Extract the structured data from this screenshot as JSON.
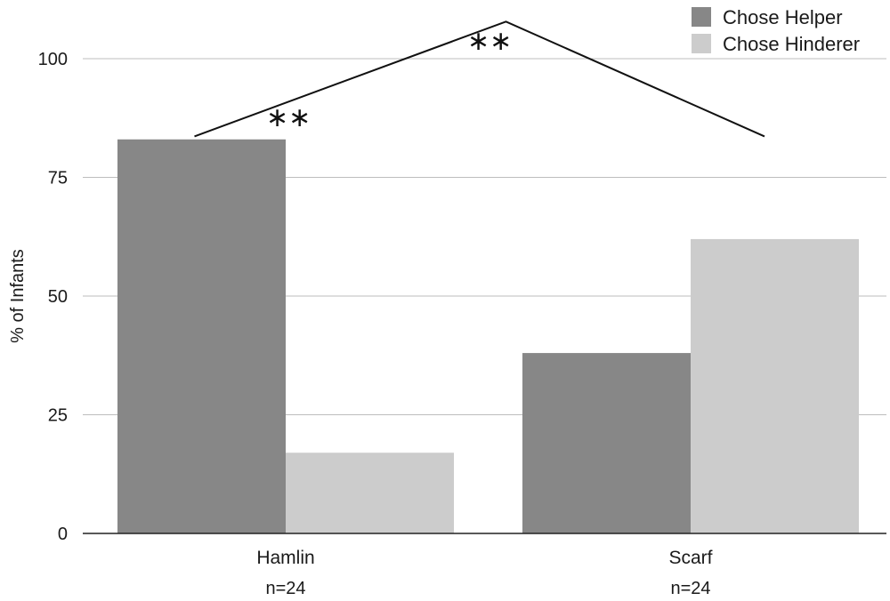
{
  "chart_data": {
    "type": "bar",
    "categories": [
      "Hamlin",
      "Scarf"
    ],
    "category_sublabels": [
      "n=24",
      "n=24"
    ],
    "series": [
      {
        "name": "Chose Helper",
        "values": [
          83,
          38
        ],
        "color": "#878787"
      },
      {
        "name": "Chose Hinderer",
        "values": [
          17,
          62
        ],
        "color": "#cccccc"
      }
    ],
    "ylabel": "% of Infants",
    "xlabel": "",
    "ylim": [
      0,
      100
    ],
    "yticks": [
      0,
      25,
      50,
      75,
      100
    ],
    "grid": true,
    "legend_position": "top-right",
    "significance": {
      "markers": [
        "∗∗",
        "∗∗"
      ],
      "line_points": [
        [
          -0.3,
          90
        ],
        [
          0.5,
          105
        ],
        [
          1.2,
          90
        ]
      ]
    }
  }
}
